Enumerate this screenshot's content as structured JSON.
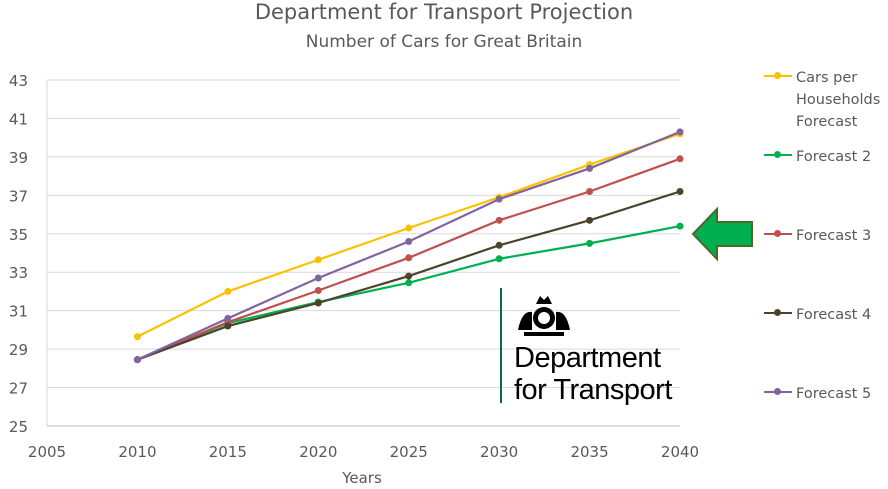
{
  "chart_data": {
    "type": "line",
    "title": "Department for Transport Projection",
    "subtitle": "Number of Cars for Great Britain",
    "xlabel": "Years",
    "ylabel": "",
    "xlim": [
      2005,
      2040
    ],
    "ylim": [
      25,
      43
    ],
    "xticks": [
      2005,
      2010,
      2015,
      2020,
      2025,
      2030,
      2035,
      2040
    ],
    "yticks": [
      25,
      27,
      29,
      31,
      33,
      35,
      37,
      39,
      41,
      43
    ],
    "grid": "horizontal",
    "legend_position": "right",
    "x": [
      2010,
      2015,
      2020,
      2025,
      2030,
      2035,
      2040
    ],
    "series": [
      {
        "name": "Cars per Households Forecast",
        "color": "#ffc000",
        "values": [
          29.65,
          32.0,
          33.65,
          35.3,
          36.9,
          38.6,
          40.2
        ]
      },
      {
        "name": "Forecast 2",
        "color": "#00b050",
        "values": [
          28.45,
          30.35,
          31.45,
          32.45,
          33.7,
          34.5,
          35.4
        ]
      },
      {
        "name": "Forecast 3",
        "color": "#c0504d",
        "values": [
          28.45,
          30.4,
          32.05,
          33.75,
          35.7,
          37.2,
          38.9
        ]
      },
      {
        "name": "Forecast 4",
        "color": "#4a452a",
        "values": [
          28.45,
          30.2,
          31.4,
          32.8,
          34.4,
          35.7,
          37.2
        ]
      },
      {
        "name": "Forecast 5",
        "color": "#8064a2",
        "values": [
          28.45,
          30.6,
          32.7,
          34.6,
          36.8,
          38.4,
          40.3
        ]
      }
    ]
  },
  "logo": {
    "line1": "Department",
    "line2": "for Transport"
  },
  "arrow_color": "#00b050"
}
